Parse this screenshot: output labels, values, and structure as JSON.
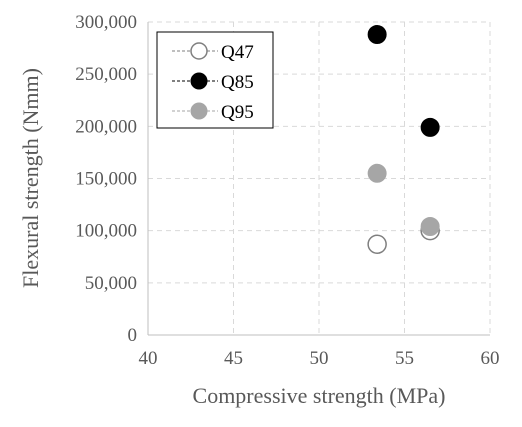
{
  "chart_data": {
    "type": "scatter",
    "xlabel": "Compressive strength (MPa)",
    "ylabel": "Flexural strength (Nmm)",
    "xlim": [
      40,
      60
    ],
    "ylim": [
      0,
      300000
    ],
    "x_ticks": [
      40,
      45,
      50,
      55,
      60
    ],
    "y_ticks": [
      0,
      50000,
      100000,
      150000,
      200000,
      250000,
      300000
    ],
    "x_tick_labels": [
      "40",
      "45",
      "50",
      "55",
      "60"
    ],
    "y_tick_labels": [
      "0",
      "50,000",
      "100,000",
      "150,000",
      "200,000",
      "250,000",
      "300,000"
    ],
    "grid": true,
    "legend_position": "top-left",
    "series": [
      {
        "name": "Q47",
        "marker": "hollow-circle",
        "color": "#7f7f7f",
        "points": [
          {
            "x": 53.4,
            "y": 87000
          },
          {
            "x": 56.5,
            "y": 100000
          }
        ]
      },
      {
        "name": "Q85",
        "marker": "filled-circle",
        "color": "#000000",
        "points": [
          {
            "x": 53.4,
            "y": 288000
          },
          {
            "x": 56.5,
            "y": 199000
          }
        ]
      },
      {
        "name": "Q95",
        "marker": "filled-circle",
        "color": "#a6a6a6",
        "points": [
          {
            "x": 53.4,
            "y": 155000
          },
          {
            "x": 56.5,
            "y": 104000
          }
        ]
      }
    ]
  }
}
